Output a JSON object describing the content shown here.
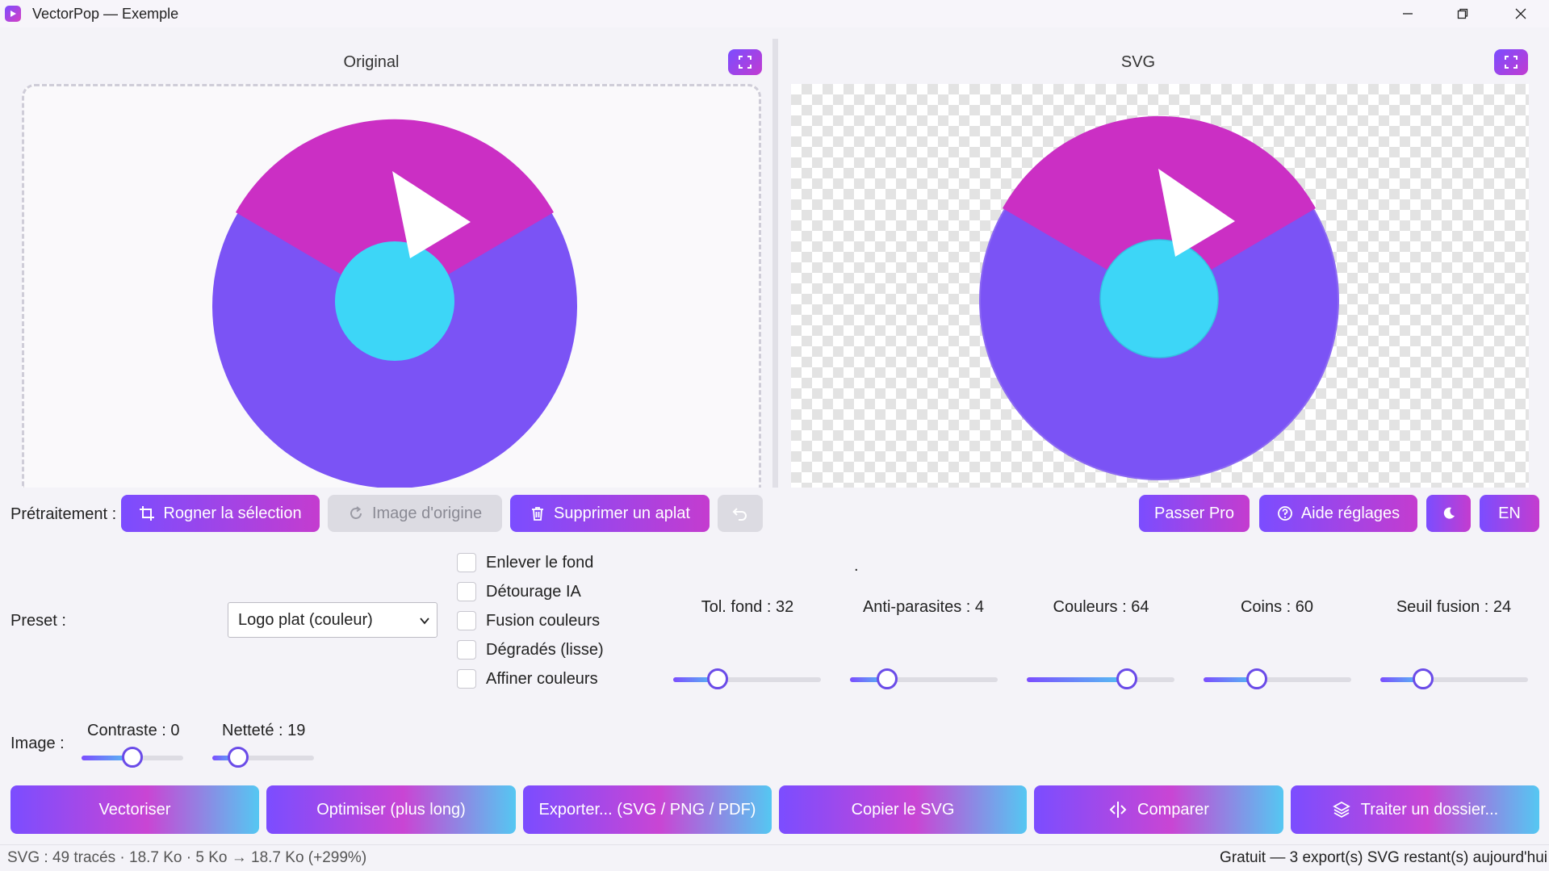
{
  "window": {
    "title": "VectorPop — Exemple"
  },
  "panels": {
    "original_title": "Original",
    "svg_title": "SVG"
  },
  "preprocess": {
    "label": "Prétraitement :",
    "crop_label": "Rogner la sélection",
    "original_image_label": "Image d'origine",
    "remove_flat_label": "Supprimer un aplat"
  },
  "top_right": {
    "pro_label": "Passer Pro",
    "help_label": "Aide réglages",
    "lang_label": "EN"
  },
  "preset": {
    "label": "Preset :",
    "value": "Logo plat (couleur)"
  },
  "options": [
    {
      "label": "Enlever le fond",
      "checked": false
    },
    {
      "label": "Détourage IA",
      "checked": false
    },
    {
      "label": "Fusion couleurs",
      "checked": false
    },
    {
      "label": "Dégradés (lisse)",
      "checked": false
    },
    {
      "label": "Affiner couleurs",
      "checked": false
    }
  ],
  "dot": ".",
  "sliders": [
    {
      "label": "Tol. fond : 32",
      "fraction": 0.3
    },
    {
      "label": "Anti-parasites : 4",
      "fraction": 0.25
    },
    {
      "label": "Couleurs : 64",
      "fraction": 0.68
    },
    {
      "label": "Coins : 60",
      "fraction": 0.36
    },
    {
      "label": "Seuil fusion : 24",
      "fraction": 0.29
    }
  ],
  "image": {
    "label": "Image :",
    "sliders": [
      {
        "label": "Contraste : 0",
        "fraction": 0.5
      },
      {
        "label": "Netteté : 19",
        "fraction": 0.25
      }
    ]
  },
  "actions": {
    "vectorize": "Vectoriser",
    "optimize": "Optimiser (plus long)",
    "export": "Exporter... (SVG / PNG / PDF)",
    "copy_svg": "Copier le SVG",
    "compare": "Comparer",
    "batch": "Traiter un dossier..."
  },
  "status": {
    "left": "SVG : 49 tracés · 18.7 Ko  ·  5 Ko → 18.7 Ko (+299%)",
    "right": "Gratuit — 3 export(s) SVG restant(s) aujourd'hui"
  },
  "colors": {
    "magenta": "#cb2fc4",
    "violet": "#7b53f5",
    "cyan": "#3dd6f7",
    "accent": "#7b4dff"
  },
  "icons": [
    "app-logo-icon",
    "minimize-icon",
    "maximize-icon",
    "close-icon",
    "fullscreen-icon",
    "crop-icon",
    "refresh-icon",
    "trash-icon",
    "undo-icon",
    "help-circle-icon",
    "moon-icon",
    "chevron-down-icon",
    "compare-icon",
    "layers-icon"
  ]
}
